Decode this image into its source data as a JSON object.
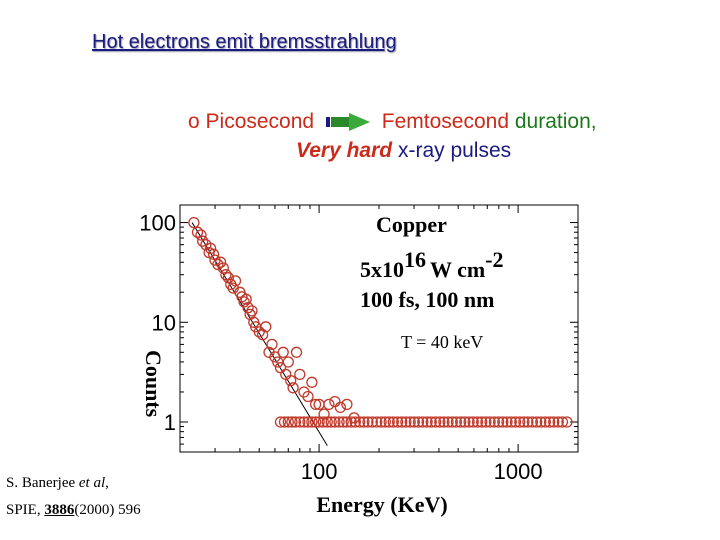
{
  "slide": {
    "title": "Hot electrons emit bremsstrahlung",
    "bullet": "o",
    "line1_from": "Picosecond",
    "line1_to": "Femtosecond",
    "line1_tail": "duration,",
    "line2_em": "Very hard",
    "line2_tail": "x-ray pulses",
    "citation_authors": "S. Banerjee",
    "citation_etal": "et al",
    "citation_comma": ",",
    "citation_journal": "SPIE,",
    "citation_volume": "3886",
    "citation_rest": "(2000) 596",
    "colors": {
      "red": "#cc2a1a",
      "green": "#1a7a1a",
      "blue": "#1a1a80",
      "marker": "#c0392b"
    }
  },
  "chart_data": {
    "type": "scatter",
    "xscale": "log",
    "yscale": "log",
    "xlim": [
      20,
      2000
    ],
    "ylim": [
      0.5,
      150
    ],
    "xticks": [
      100,
      1000
    ],
    "xtick_labels": [
      "100",
      "1000"
    ],
    "yticks": [
      1,
      10,
      100
    ],
    "ytick_labels": [
      "1",
      "10",
      "100"
    ],
    "xlabel": "Energy (KeV)",
    "ylabel": "Counts",
    "annotations": {
      "material": "Copper",
      "intensity_base": "5x10",
      "intensity_exp": "16",
      "intensity_unit": "W cm",
      "intensity_unit_exp": "-2",
      "pulse": "100 fs, 100 nm",
      "temperature_fit": "T = 40 keV"
    },
    "fit_line": {
      "x": [
        23,
        110
      ],
      "y": [
        100,
        0.58
      ]
    },
    "series": [
      {
        "name": "Copper data",
        "x": [
          23.5,
          24.5,
          25.5,
          26,
          27,
          28,
          28.5,
          29.5,
          30,
          31,
          32,
          33,
          34,
          35,
          36,
          37,
          38,
          40,
          41,
          42,
          43,
          44,
          45,
          46,
          47,
          48,
          50,
          52,
          54,
          56,
          58,
          60,
          62,
          64,
          66,
          68,
          70,
          72,
          74,
          77,
          80,
          84,
          88,
          92,
          96,
          100,
          106,
          112,
          120,
          128,
          138,
          150,
          64,
          67,
          70,
          73,
          76,
          80,
          84,
          88,
          92,
          96,
          100,
          105,
          110,
          115,
          120,
          126,
          132,
          138,
          145,
          152,
          160,
          168,
          176,
          185,
          195,
          205,
          215,
          225,
          236,
          248,
          260,
          273,
          287,
          301,
          316,
          332,
          349,
          366,
          385,
          404,
          424,
          445,
          467,
          490,
          515,
          540,
          567,
          595,
          625,
          656,
          689,
          723,
          760,
          798,
          838,
          880,
          924,
          970,
          1020,
          1070,
          1120,
          1180,
          1240,
          1300,
          1370,
          1440,
          1510,
          1590,
          1670,
          1760
        ],
        "y": [
          100,
          80,
          75,
          65,
          60,
          50,
          55,
          48,
          42,
          38,
          40,
          35,
          30,
          28,
          24,
          22,
          26,
          20,
          18,
          16,
          17,
          14,
          12,
          13,
          10,
          9,
          8,
          7.5,
          9,
          5,
          6,
          4.5,
          4,
          3.5,
          5,
          3,
          4,
          2.6,
          2.2,
          5,
          3,
          2,
          1.8,
          2.5,
          1.5,
          1.5,
          1.2,
          1.5,
          1.6,
          1.4,
          1.5,
          1.1,
          1,
          1,
          1,
          1,
          1,
          1,
          1,
          1,
          1,
          1,
          1,
          1,
          1,
          1,
          1,
          1,
          1,
          1,
          1,
          1,
          1,
          1,
          1,
          1,
          1,
          1,
          1,
          1,
          1,
          1,
          1,
          1,
          1,
          1,
          1,
          1,
          1,
          1,
          1,
          1,
          1,
          1,
          1,
          1,
          1,
          1,
          1,
          1,
          1,
          1,
          1,
          1,
          1,
          1,
          1,
          1,
          1,
          1,
          1,
          1,
          1,
          1,
          1,
          1,
          1,
          1,
          1,
          1,
          1,
          1
        ]
      }
    ]
  }
}
